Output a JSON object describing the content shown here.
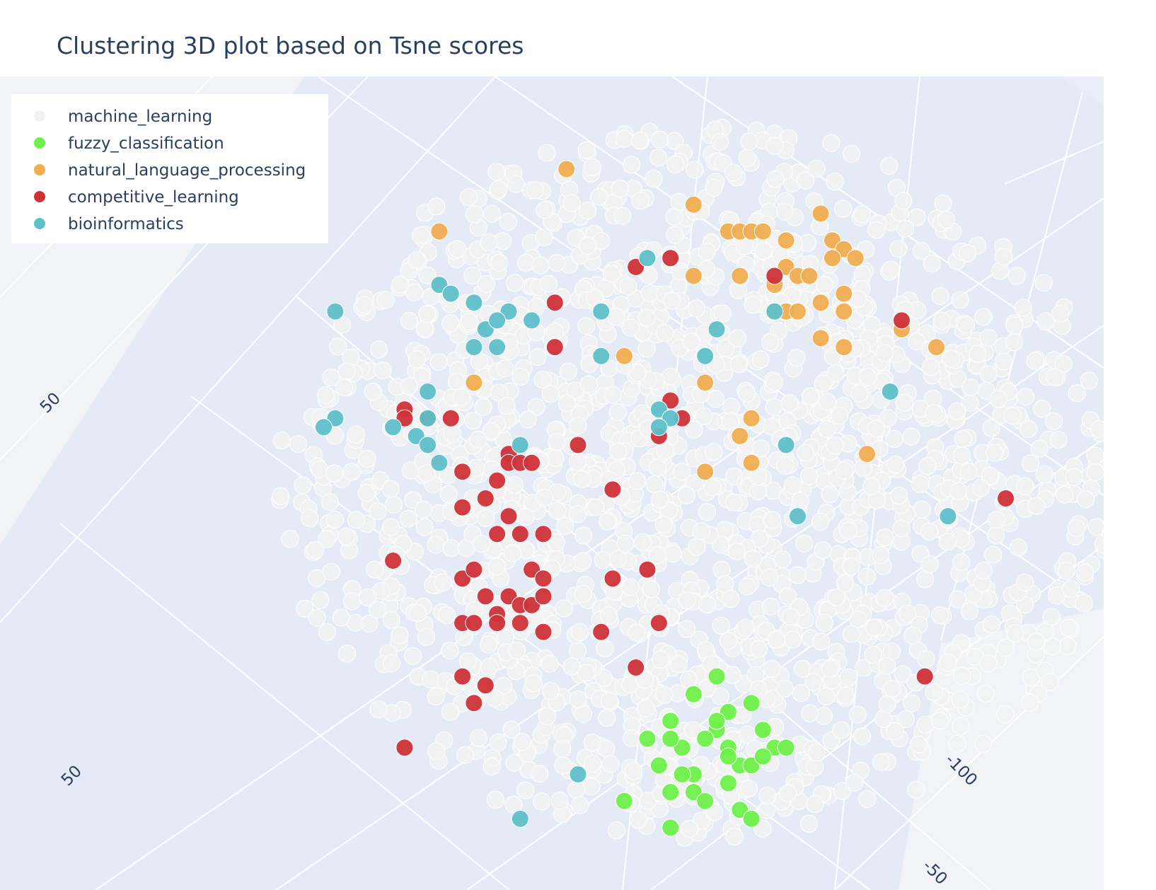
{
  "chart_data": {
    "type": "scatter",
    "projection": "3d",
    "title": "Clustering 3D plot based on Tsne scores",
    "legend_position": "top-left",
    "grid": true,
    "colors": {
      "machine_learning": "#f2f2f2",
      "fuzzy_classification": "#6ef04a",
      "natural_language_processing": "#f0ad50",
      "competitive_learning": "#cf3138",
      "bioinformatics": "#5ec0c8",
      "scene_background": "#e5ebf6",
      "paper_background": "#f2f3f7",
      "marker_outline": "#ffffff"
    },
    "visible_tick_labels": [
      "50",
      "50",
      "-100",
      "-50"
    ],
    "series": [
      {
        "name": "machine_learning",
        "style": "dense background cloud",
        "count_estimate": 1800,
        "bounds": [
          [
            0.24,
            0.14
          ],
          [
            0.97,
            0.95
          ]
        ]
      },
      {
        "name": "fuzzy_classification",
        "points": [
          [
            0.6,
            0.78
          ],
          [
            0.58,
            0.81
          ],
          [
            0.62,
            0.82
          ],
          [
            0.65,
            0.79
          ],
          [
            0.61,
            0.83
          ],
          [
            0.56,
            0.83
          ],
          [
            0.57,
            0.86
          ],
          [
            0.59,
            0.84
          ],
          [
            0.63,
            0.84
          ],
          [
            0.66,
            0.82
          ],
          [
            0.63,
            0.8
          ],
          [
            0.64,
            0.86
          ],
          [
            0.67,
            0.84
          ],
          [
            0.65,
            0.86
          ],
          [
            0.68,
            0.84
          ],
          [
            0.66,
            0.85
          ],
          [
            0.6,
            0.87
          ],
          [
            0.58,
            0.89
          ],
          [
            0.6,
            0.89
          ],
          [
            0.61,
            0.9
          ],
          [
            0.64,
            0.91
          ],
          [
            0.65,
            0.92
          ],
          [
            0.63,
            0.88
          ],
          [
            0.58,
            0.83
          ],
          [
            0.62,
            0.76
          ],
          [
            0.58,
            0.93
          ],
          [
            0.63,
            0.85
          ],
          [
            0.62,
            0.81
          ],
          [
            0.54,
            0.9
          ],
          [
            0.59,
            0.87
          ]
        ]
      },
      {
        "name": "natural_language_processing",
        "points": [
          [
            0.49,
            0.19
          ],
          [
            0.38,
            0.26
          ],
          [
            0.6,
            0.23
          ],
          [
            0.63,
            0.26
          ],
          [
            0.64,
            0.26
          ],
          [
            0.65,
            0.26
          ],
          [
            0.66,
            0.26
          ],
          [
            0.68,
            0.27
          ],
          [
            0.71,
            0.24
          ],
          [
            0.72,
            0.27
          ],
          [
            0.73,
            0.28
          ],
          [
            0.72,
            0.29
          ],
          [
            0.74,
            0.29
          ],
          [
            0.68,
            0.3
          ],
          [
            0.69,
            0.31
          ],
          [
            0.7,
            0.31
          ],
          [
            0.67,
            0.32
          ],
          [
            0.6,
            0.31
          ],
          [
            0.64,
            0.31
          ],
          [
            0.67,
            0.35
          ],
          [
            0.68,
            0.35
          ],
          [
            0.69,
            0.35
          ],
          [
            0.71,
            0.34
          ],
          [
            0.73,
            0.33
          ],
          [
            0.73,
            0.35
          ],
          [
            0.71,
            0.38
          ],
          [
            0.73,
            0.39
          ],
          [
            0.78,
            0.37
          ],
          [
            0.81,
            0.39
          ],
          [
            0.54,
            0.4
          ],
          [
            0.41,
            0.43
          ],
          [
            0.61,
            0.43
          ],
          [
            0.65,
            0.47
          ],
          [
            0.64,
            0.49
          ],
          [
            0.61,
            0.53
          ],
          [
            0.65,
            0.52
          ],
          [
            0.75,
            0.51
          ]
        ]
      },
      {
        "name": "competitive_learning",
        "points": [
          [
            0.58,
            0.29
          ],
          [
            0.55,
            0.3
          ],
          [
            0.67,
            0.31
          ],
          [
            0.78,
            0.36
          ],
          [
            0.48,
            0.34
          ],
          [
            0.48,
            0.39
          ],
          [
            0.58,
            0.45
          ],
          [
            0.59,
            0.47
          ],
          [
            0.57,
            0.49
          ],
          [
            0.35,
            0.46
          ],
          [
            0.35,
            0.47
          ],
          [
            0.37,
            0.47
          ],
          [
            0.39,
            0.47
          ],
          [
            0.5,
            0.5
          ],
          [
            0.44,
            0.51
          ],
          [
            0.4,
            0.53
          ],
          [
            0.43,
            0.54
          ],
          [
            0.44,
            0.52
          ],
          [
            0.45,
            0.52
          ],
          [
            0.46,
            0.52
          ],
          [
            0.53,
            0.55
          ],
          [
            0.4,
            0.57
          ],
          [
            0.42,
            0.56
          ],
          [
            0.44,
            0.58
          ],
          [
            0.43,
            0.6
          ],
          [
            0.45,
            0.6
          ],
          [
            0.47,
            0.6
          ],
          [
            0.34,
            0.63
          ],
          [
            0.4,
            0.65
          ],
          [
            0.41,
            0.64
          ],
          [
            0.46,
            0.64
          ],
          [
            0.47,
            0.65
          ],
          [
            0.53,
            0.65
          ],
          [
            0.56,
            0.64
          ],
          [
            0.42,
            0.67
          ],
          [
            0.44,
            0.67
          ],
          [
            0.45,
            0.68
          ],
          [
            0.46,
            0.68
          ],
          [
            0.47,
            0.67
          ],
          [
            0.43,
            0.69
          ],
          [
            0.4,
            0.7
          ],
          [
            0.41,
            0.7
          ],
          [
            0.43,
            0.7
          ],
          [
            0.45,
            0.7
          ],
          [
            0.47,
            0.71
          ],
          [
            0.52,
            0.71
          ],
          [
            0.57,
            0.7
          ],
          [
            0.55,
            0.75
          ],
          [
            0.4,
            0.76
          ],
          [
            0.42,
            0.77
          ],
          [
            0.41,
            0.79
          ],
          [
            0.35,
            0.84
          ],
          [
            0.8,
            0.76
          ],
          [
            0.87,
            0.56
          ]
        ]
      },
      {
        "name": "bioinformatics",
        "points": [
          [
            0.29,
            0.35
          ],
          [
            0.38,
            0.32
          ],
          [
            0.39,
            0.33
          ],
          [
            0.41,
            0.34
          ],
          [
            0.44,
            0.35
          ],
          [
            0.42,
            0.37
          ],
          [
            0.43,
            0.36
          ],
          [
            0.46,
            0.36
          ],
          [
            0.52,
            0.35
          ],
          [
            0.41,
            0.39
          ],
          [
            0.43,
            0.39
          ],
          [
            0.52,
            0.4
          ],
          [
            0.56,
            0.29
          ],
          [
            0.62,
            0.37
          ],
          [
            0.61,
            0.4
          ],
          [
            0.67,
            0.35
          ],
          [
            0.37,
            0.44
          ],
          [
            0.37,
            0.47
          ],
          [
            0.29,
            0.47
          ],
          [
            0.28,
            0.48
          ],
          [
            0.34,
            0.48
          ],
          [
            0.36,
            0.49
          ],
          [
            0.37,
            0.5
          ],
          [
            0.38,
            0.52
          ],
          [
            0.45,
            0.5
          ],
          [
            0.57,
            0.46
          ],
          [
            0.58,
            0.47
          ],
          [
            0.57,
            0.48
          ],
          [
            0.68,
            0.5
          ],
          [
            0.77,
            0.44
          ],
          [
            0.69,
            0.58
          ],
          [
            0.82,
            0.58
          ],
          [
            0.5,
            0.87
          ],
          [
            0.45,
            0.92
          ]
        ]
      }
    ]
  }
}
